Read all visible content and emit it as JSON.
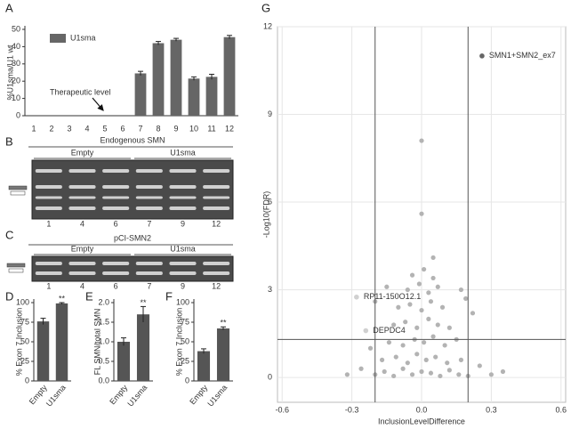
{
  "panel_labels": [
    "A",
    "B",
    "C",
    "D",
    "E",
    "F",
    "G"
  ],
  "chart_data": [
    {
      "type": "bar",
      "ylabel": "%U1sma/U1 wt",
      "categories": [
        "1",
        "2",
        "3",
        "4",
        "5",
        "6",
        "7",
        "8",
        "9",
        "10",
        "11",
        "12"
      ],
      "series": [
        {
          "name": "U1sma",
          "color": "#666666",
          "values": [
            0,
            0,
            0,
            0,
            0,
            0,
            24.5,
            42,
            44,
            21.5,
            22.5,
            45.5
          ],
          "errors": [
            0,
            0,
            0,
            0,
            0,
            0,
            1.2,
            1.0,
            0.8,
            1.0,
            1.5,
            1.0
          ]
        }
      ],
      "ylim": [
        0,
        50
      ],
      "yticks": [
        0,
        10,
        20,
        30,
        40,
        50
      ],
      "annotation": "Therapeutic level"
    },
    {
      "type": "bar",
      "ylabel": "% Exon 7 Inclusion",
      "categories": [
        "Empty",
        "U1sma"
      ],
      "series": [
        {
          "color": "#555555",
          "values": [
            76,
            99
          ],
          "errors": [
            4,
            1
          ]
        }
      ],
      "ylim": [
        0,
        100
      ],
      "yticks": [
        0,
        25,
        50,
        75,
        100
      ],
      "annotation": "**"
    },
    {
      "type": "bar",
      "ylabel": "FL SMN/total SMN",
      "categories": [
        "Empty",
        "U1sma"
      ],
      "series": [
        {
          "color": "#555555",
          "values": [
            1.0,
            1.7
          ],
          "errors": [
            0.1,
            0.2
          ]
        }
      ],
      "ylim": [
        0,
        2
      ],
      "yticks": [
        {
          "value": 0,
          "label": "0.0"
        },
        0.5,
        {
          "value": 1,
          "label": "1.0"
        },
        1.5,
        {
          "value": 2,
          "label": "2.0"
        }
      ],
      "annotation": "**"
    },
    {
      "type": "bar",
      "ylabel": "% Exon 7 Inclusion",
      "categories": [
        "Empty",
        "U1sma"
      ],
      "series": [
        {
          "color": "#555555",
          "values": [
            38,
            67
          ],
          "errors": [
            3,
            2
          ]
        }
      ],
      "ylim": [
        0,
        100
      ],
      "yticks": [
        0,
        25,
        50,
        75,
        100
      ],
      "annotation": "**"
    },
    {
      "type": "scatter",
      "xlabel": "InclusionLevelDifference",
      "ylabel": "-Log10(FDR)",
      "color": "#b3b3b3",
      "x": [
        -0.2,
        -0.16,
        -0.12,
        -0.08,
        -0.04,
        0,
        0.04,
        0.08,
        0.12,
        0.16,
        0.2,
        -0.17,
        -0.11,
        -0.06,
        -0.02,
        0.02,
        0.06,
        0.11,
        0.17,
        -0.14,
        -0.08,
        -0.03,
        0.01,
        0.05,
        0.1,
        0.15,
        -0.12,
        -0.07,
        -0.02,
        0.03,
        0.07,
        0.12,
        -0.1,
        -0.05,
        0,
        0.04,
        0.09,
        0.19,
        -0.06,
        -0.01,
        0.03,
        0.07,
        -0.04,
        0.01,
        0.05,
        0.05,
        0,
        0,
        -0.26,
        -0.22,
        0.25,
        0.3,
        0.22,
        -0.2,
        0.17,
        -0.15,
        0.35,
        -0.32
      ],
      "y": [
        0.1,
        0.2,
        0.05,
        0.3,
        0.1,
        0.2,
        0.15,
        0.05,
        0.25,
        0.1,
        0.05,
        0.6,
        0.7,
        0.5,
        0.8,
        0.6,
        0.7,
        0.5,
        0.6,
        1.2,
        1.1,
        1.3,
        1.2,
        1.4,
        1.1,
        1.3,
        1.8,
        1.9,
        1.7,
        2.0,
        1.8,
        1.7,
        2.4,
        2.5,
        2.3,
        2.6,
        2.4,
        2.7,
        3.0,
        3.2,
        2.9,
        3.1,
        3.5,
        3.7,
        3.4,
        4.1,
        5.6,
        8.1,
        0.3,
        1.0,
        0.4,
        0.1,
        2.2,
        2.6,
        3.0,
        3.1,
        0.2,
        0.1
      ],
      "labeled_points": [
        {
          "label": "SMN1+SMN2_ex7",
          "x": 0.26,
          "y": 11,
          "color": "#666666"
        },
        {
          "label": "RP11-150O12.1",
          "x": -0.28,
          "y": 2.75,
          "color": "#d0d0d0"
        },
        {
          "label": "DEPDC4",
          "x": -0.24,
          "y": 1.6,
          "color": "#d0d0d0"
        }
      ],
      "vlines": [
        -0.2,
        0.2
      ],
      "hline": 1.3,
      "xlim": [
        -0.62,
        0.62
      ],
      "xticks": [
        -0.6,
        -0.3,
        {
          "value": 0,
          "label": "0.0"
        },
        0.3,
        0.6
      ],
      "ylim": [
        -0.85,
        12
      ],
      "yticks": [
        0,
        3,
        6,
        9,
        12
      ],
      "grid": true
    }
  ],
  "gels": [
    {
      "title": "Endogenous SMN",
      "groups": [
        "Empty",
        "U1sma"
      ],
      "lanes": [
        "1",
        "4",
        "6",
        "7",
        "9",
        "12"
      ]
    },
    {
      "title": "pCI-SMN2",
      "groups": [
        "Empty",
        "U1sma"
      ],
      "lanes": [
        "1",
        "4",
        "6",
        "7",
        "9",
        "12"
      ]
    }
  ]
}
